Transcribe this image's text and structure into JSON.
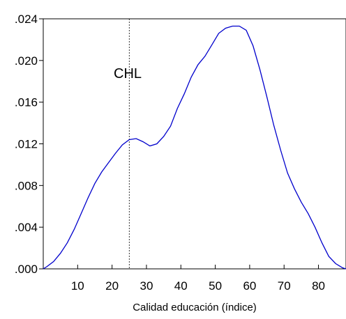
{
  "chart_data": {
    "type": "line",
    "title": "",
    "xlabel": "Calidad educación (índice)",
    "ylabel": "",
    "xlim": [
      0,
      88
    ],
    "ylim": [
      0,
      0.024
    ],
    "x_ticks": [
      10,
      20,
      30,
      40,
      50,
      60,
      70,
      80
    ],
    "y_ticks": [
      0,
      0.004,
      0.008,
      0.012,
      0.016,
      0.02,
      0.024
    ],
    "y_tick_labels": [
      ".000",
      ".004",
      ".008",
      ".012",
      ".016",
      ".020",
      ".024"
    ],
    "grid": false,
    "line_color": "#0000cc",
    "series": [
      {
        "x": [
          0,
          1,
          3,
          5,
          7,
          9,
          11,
          13,
          15,
          17,
          19,
          21,
          23,
          25,
          27,
          29,
          31,
          33,
          35,
          37,
          39,
          41,
          43,
          45,
          47,
          49,
          51,
          53,
          55,
          57,
          59,
          61,
          63,
          65,
          67,
          69,
          71,
          73,
          75,
          77,
          79,
          81,
          83,
          85,
          87,
          88
        ],
        "y": [
          0,
          0.0002,
          0.0007,
          0.0015,
          0.0025,
          0.0038,
          0.0053,
          0.0068,
          0.0082,
          0.0093,
          0.0102,
          0.0111,
          0.0119,
          0.0124,
          0.0125,
          0.0122,
          0.0118,
          0.012,
          0.0127,
          0.0137,
          0.0154,
          0.0168,
          0.0184,
          0.0196,
          0.0204,
          0.0215,
          0.0226,
          0.0231,
          0.0233,
          0.0233,
          0.0229,
          0.0214,
          0.0191,
          0.0165,
          0.0138,
          0.0114,
          0.0092,
          0.0077,
          0.0064,
          0.0053,
          0.004,
          0.0025,
          0.0012,
          0.0005,
          0.0001,
          0
        ]
      }
    ],
    "reference_line": {
      "x": 25,
      "label": "CHL",
      "style": "dashed"
    }
  }
}
